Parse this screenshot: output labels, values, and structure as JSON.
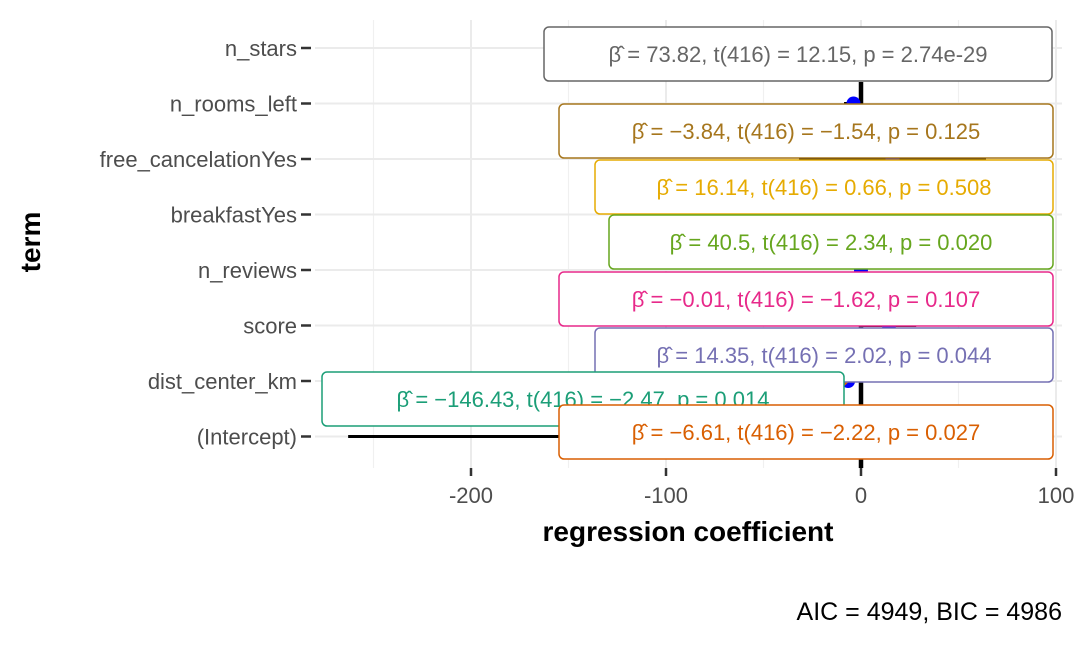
{
  "chart_data": {
    "type": "dot-whisker",
    "xlabel": "regression coefficient",
    "ylabel": "term",
    "xlim": [
      -280,
      100
    ],
    "x_ticks": [
      -200,
      -100,
      0,
      100
    ],
    "x_tick_labels": [
      "-200",
      "-100",
      "0",
      "100"
    ],
    "grid": true,
    "reference_line_x": 0,
    "caption": "AIC = 4949, BIC = 4986",
    "terms": [
      {
        "term": "n_stars",
        "estimate": 73.82,
        "ci": [
          61.9,
          85.8
        ],
        "label": "β̂ = 73.82,  t(416) = 12.15,  p = 2.74e-29",
        "color": "#666666"
      },
      {
        "term": "n_rooms_left",
        "estimate": -3.84,
        "ci": [
          -8.7,
          1.0
        ],
        "label": "β̂ = −3.84,  t(416) = −1.54,  p = 0.125",
        "color": "#A6761D"
      },
      {
        "term": "free_cancelationYes",
        "estimate": 16.14,
        "ci": [
          -31.8,
          64.1
        ],
        "label": "β̂ = 16.14,  t(416) = 0.66,  p = 0.508",
        "color": "#E6AB02"
      },
      {
        "term": "breakfastYes",
        "estimate": 40.5,
        "ci": [
          6.5,
          74.5
        ],
        "label": "β̂ = 40.5,  t(416) = 2.34,  p = 0.020",
        "color": "#66A61E"
      },
      {
        "term": "n_reviews",
        "estimate": -0.01,
        "ci": [
          -0.02,
          0.0
        ],
        "label": "β̂ = −0.01,  t(416) = −1.62,  p = 0.107",
        "color": "#E7298A"
      },
      {
        "term": "score",
        "estimate": 14.35,
        "ci": [
          0.4,
          28.3
        ],
        "label": "β̂ = 14.35,  t(416) = 2.02,  p = 0.044",
        "color": "#7570B3"
      },
      {
        "term": "dist_center_km",
        "estimate": -6.61,
        "ci": [
          -12.5,
          -0.8
        ],
        "label": "β̂ = −6.61,  t(416) = −2.22,  p = 0.027",
        "color": "#D95F02"
      },
      {
        "term": "(Intercept)",
        "estimate": -146.43,
        "ci": [
          -263.0,
          -29.9
        ],
        "label": "β̂ = −146.43,  t(416) = −2.47,  p = 0.014",
        "color": "#1B9E77"
      }
    ]
  }
}
